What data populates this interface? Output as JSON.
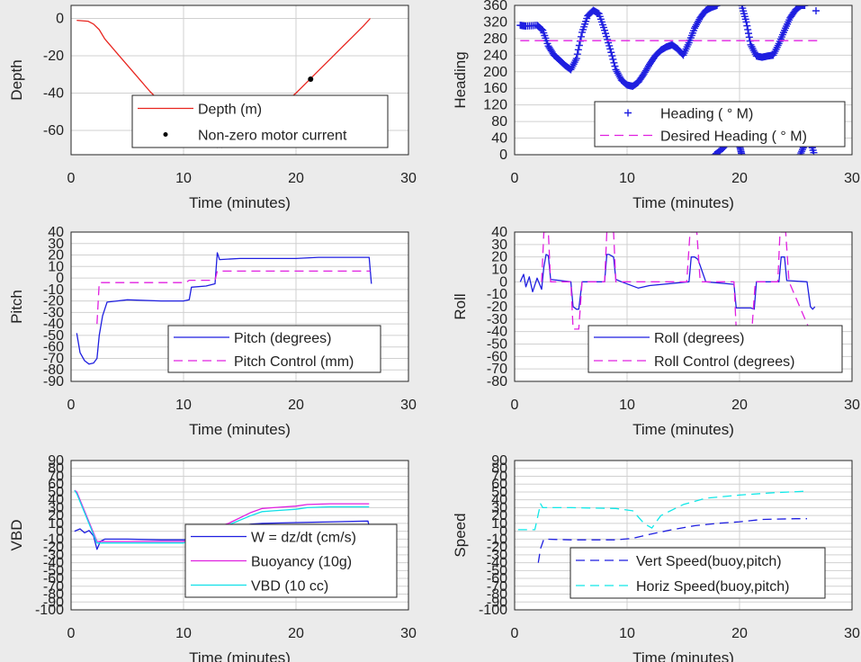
{
  "figure": {
    "background": "#ebebeb",
    "axes_background": "#ffffff",
    "grid_color": "#d0d0d0"
  },
  "chart_data": [
    {
      "id": "depth",
      "type": "line",
      "xlabel": "Time (minutes)",
      "ylabel": "Depth",
      "xlim": [
        0,
        30
      ],
      "ylim": [
        -73,
        7
      ],
      "xticks": [
        0,
        10,
        20,
        30
      ],
      "yticks": [
        0,
        -20,
        -40,
        -60
      ],
      "grid": true,
      "legend_position": "lower-center",
      "series": [
        {
          "name": "Depth (m)",
          "color": "#e8251f",
          "style": "solid",
          "x": [
            0.5,
            1.5,
            2.0,
            2.5,
            3,
            4,
            5,
            6,
            7,
            8,
            9,
            10,
            11,
            12,
            13,
            14,
            15,
            16,
            17,
            18,
            19,
            20,
            21,
            22,
            23,
            24,
            25,
            26,
            26.6
          ],
          "y": [
            -1,
            -1.5,
            -3,
            -6,
            -11,
            -18,
            -25,
            -32,
            -39,
            -45,
            -51,
            -57,
            -62,
            -66,
            -68,
            -67,
            -64,
            -60,
            -55,
            -50,
            -45,
            -40,
            -34,
            -28,
            -22,
            -16,
            -10,
            -4,
            0
          ]
        },
        {
          "name": "Non-zero motor current",
          "color": "#000000",
          "style": "markers",
          "x": [
            10.2,
            10.6,
            11.0,
            11.4,
            11.8,
            12.2,
            12.6,
            13.0,
            13.4,
            13.8,
            14.2,
            14.6,
            15.0,
            15.4,
            15.8,
            16.2,
            16.6,
            17.0,
            19.2,
            19.4,
            19.6,
            19.8,
            21.3
          ],
          "y": [
            -61,
            -62,
            -63,
            -64.5,
            -66,
            -67,
            -67.5,
            -68,
            -68,
            -67.5,
            -67,
            -66,
            -65,
            -63.5,
            -62,
            -60.5,
            -58.5,
            -57,
            -46.5,
            -45.2,
            -43.8,
            -42.5,
            -32.5
          ]
        }
      ]
    },
    {
      "id": "heading",
      "type": "line",
      "xlabel": "Time (minutes)",
      "ylabel": "Heading",
      "xlim": [
        0,
        30
      ],
      "ylim": [
        0,
        360
      ],
      "xticks": [
        0,
        10,
        20,
        30
      ],
      "yticks": [
        0,
        40,
        80,
        120,
        160,
        200,
        240,
        280,
        320,
        360
      ],
      "grid": true,
      "legend_position": "lower-right",
      "series": [
        {
          "name": "Heading (   ° M)",
          "color": "#1f1fe0",
          "style": "markers",
          "segments": [
            {
              "x": [
                0.5,
                1,
                2,
                2.5,
                3,
                3.5,
                4,
                4.5,
                5,
                5.5,
                6,
                6.5,
                7,
                7.5,
                8,
                8.5,
                9,
                9.5,
                10,
                10.5,
                11,
                11.5,
                12,
                12.5,
                13,
                13.5,
                14,
                14.5,
                15,
                15.5,
                16,
                16.5,
                17,
                17.5,
                18
              ],
              "y": [
                312,
                310,
                312,
                300,
                262,
                240,
                228,
                215,
                205,
                232,
                295,
                335,
                348,
                340,
                300,
                255,
                205,
                180,
                168,
                165,
                175,
                195,
                218,
                238,
                252,
                260,
                265,
                255,
                240,
                270,
                305,
                330,
                348,
                355,
                360
              ]
            },
            {
              "x": [
                17.8,
                18.5,
                19,
                19.5,
                20,
                20.2
              ],
              "y": [
                0,
                15,
                30,
                38,
                22,
                0
              ]
            },
            {
              "x": [
                20.2,
                20.6,
                21,
                21.5,
                22,
                22.5,
                23,
                23.5,
                24,
                24.5,
                25,
                25.5,
                25.8
              ],
              "y": [
                360,
                320,
                265,
                238,
                235,
                238,
                240,
                268,
                300,
                330,
                350,
                360,
                360
              ]
            },
            {
              "x": [
                25.4,
                25.8,
                26.2,
                26.6
              ],
              "y": [
                0,
                25,
                40,
                5
              ]
            },
            {
              "x": [
                26.8
              ],
              "y": [
                347
              ]
            }
          ]
        },
        {
          "name": "Desired Heading (     ° M)",
          "color": "#e020e0",
          "style": "dashed",
          "x": [
            0.5,
            27
          ],
          "y": [
            275,
            275
          ]
        }
      ]
    },
    {
      "id": "pitch",
      "type": "line",
      "xlabel": "Time (minutes)",
      "ylabel": "Pitch",
      "xlim": [
        0,
        30
      ],
      "ylim": [
        -90,
        40
      ],
      "xticks": [
        0,
        10,
        20,
        30
      ],
      "yticks": [
        40,
        30,
        20,
        10,
        0,
        -10,
        -20,
        -30,
        -40,
        -50,
        -60,
        -70,
        -80,
        -90
      ],
      "grid": true,
      "legend_position": "lower-right",
      "series": [
        {
          "name": "Pitch (degrees)",
          "color": "#1f1fe0",
          "style": "solid",
          "x": [
            0.5,
            0.8,
            1.2,
            1.6,
            2.0,
            2.3,
            2.5,
            2.8,
            3.2,
            5,
            8,
            10,
            10.5,
            10.7,
            12,
            12.8,
            13.0,
            13.2,
            15,
            20,
            22,
            26.5,
            26.7
          ],
          "y": [
            -48,
            -65,
            -72,
            -75,
            -74,
            -70,
            -50,
            -33,
            -21,
            -19,
            -20,
            -20,
            -19,
            -8,
            -7,
            -5,
            22,
            16,
            17,
            17,
            18,
            18,
            -5
          ]
        },
        {
          "name": "Pitch Control (mm)",
          "color": "#e020e0",
          "style": "dashed",
          "x": [
            2.3,
            2.5,
            10.2,
            10.5,
            12.8,
            13.0,
            26.6
          ],
          "y": [
            -40,
            -4,
            -4,
            -2,
            -2,
            6,
            6
          ]
        }
      ]
    },
    {
      "id": "roll",
      "type": "line",
      "xlabel": "Time (minutes)",
      "ylabel": "Roll",
      "xlim": [
        0,
        30
      ],
      "ylim": [
        -80,
        40
      ],
      "xticks": [
        0,
        10,
        20,
        30
      ],
      "yticks": [
        40,
        30,
        20,
        10,
        0,
        -10,
        -20,
        -30,
        -40,
        -50,
        -60,
        -70,
        -80
      ],
      "grid": true,
      "legend_position": "lower-right",
      "series": [
        {
          "name": "Roll (degrees)",
          "color": "#1f1fe0",
          "style": "solid",
          "x": [
            0.5,
            0.8,
            1.0,
            1.3,
            1.6,
            2.0,
            2.4,
            2.6,
            2.8,
            3.0,
            3.2,
            5,
            5.2,
            5.5,
            5.7,
            6,
            8,
            8.2,
            8.4,
            8.8,
            9,
            9.5,
            11,
            12,
            15.5,
            15.7,
            16,
            16.3,
            17,
            19.5,
            19.7,
            21,
            21.3,
            21.5,
            23.5,
            23.7,
            24,
            24.2,
            26,
            26.3,
            26.5,
            26.7
          ],
          "y": [
            0,
            6,
            -4,
            4,
            -8,
            3,
            -6,
            12,
            22,
            21,
            2,
            0,
            -20,
            -22,
            -22,
            0,
            0,
            22,
            22,
            20,
            2,
            0,
            -5,
            -3,
            0,
            20,
            20,
            18,
            0,
            -2,
            -21,
            -21,
            -22,
            0,
            0,
            20,
            20,
            1,
            0,
            -20,
            -22,
            -20
          ]
        },
        {
          "name": "Roll Control (degrees)",
          "color": "#e020e0",
          "style": "dashed",
          "x": [
            2.4,
            2.6,
            3.0,
            3.2,
            5,
            5.2,
            5.7,
            6,
            8,
            8.2,
            8.8,
            9,
            15.3,
            15.6,
            16.2,
            16.5,
            19.5,
            19.7,
            21.1,
            21.4,
            23.4,
            23.6,
            24.1,
            24.4,
            26.3,
            26.7
          ],
          "y": [
            0,
            40,
            40,
            0,
            0,
            -38,
            -38,
            0,
            0,
            40,
            40,
            0,
            0,
            40,
            40,
            0,
            0,
            -38,
            -38,
            0,
            0,
            40,
            40,
            0,
            -40,
            -50
          ]
        }
      ]
    },
    {
      "id": "vbd",
      "type": "line",
      "xlabel": "Time (minutes)",
      "ylabel": "VBD",
      "xlim": [
        0,
        30
      ],
      "ylim": [
        -100,
        90
      ],
      "xticks": [
        0,
        10,
        20,
        30
      ],
      "yticks": [
        90,
        80,
        70,
        60,
        50,
        40,
        30,
        20,
        10,
        0,
        -10,
        -20,
        -30,
        -40,
        -50,
        -60,
        -70,
        -80,
        -90,
        -100
      ],
      "grid": true,
      "legend_position": "lower-right",
      "series": [
        {
          "name": "W = dz/dt (cm/s)",
          "color": "#1f1fe0",
          "style": "solid",
          "x": [
            0.3,
            0.8,
            1.2,
            1.6,
            2.0,
            2.3,
            2.6,
            3.0,
            5,
            8,
            10,
            11,
            12,
            13,
            14,
            15,
            16,
            17,
            20,
            26.4,
            26.6
          ],
          "y": [
            0,
            3,
            -2,
            1,
            -6,
            -23,
            -13,
            -10,
            -10,
            -11,
            -11,
            -9,
            -5,
            0,
            4,
            7,
            9,
            10,
            11,
            13,
            0
          ]
        },
        {
          "name": "Buoyancy (10g)",
          "color": "#e020e0",
          "style": "solid",
          "x": [
            0.3,
            0.5,
            2.3,
            3.0,
            10,
            12,
            14,
            16,
            17,
            18,
            20,
            21,
            23,
            26.5
          ],
          "y": [
            52,
            50,
            -13,
            -13,
            -13,
            0,
            10,
            24,
            29,
            30,
            32,
            34,
            35,
            35
          ]
        },
        {
          "name": "VBD (10 cc)",
          "color": "#10e0e8",
          "style": "solid",
          "x": [
            0.3,
            0.5,
            2.3,
            3.0,
            10,
            12,
            14,
            16,
            17,
            18,
            20,
            21,
            23,
            26.5
          ],
          "y": [
            52,
            48,
            -15,
            -15,
            -15,
            -2,
            8,
            20,
            25,
            26,
            28,
            30,
            31,
            31
          ]
        }
      ]
    },
    {
      "id": "speed",
      "type": "line",
      "xlabel": "Time (minutes)",
      "ylabel": "Speed",
      "xlim": [
        0,
        30
      ],
      "ylim": [
        -100,
        90
      ],
      "xticks": [
        0,
        10,
        20,
        30
      ],
      "yticks": [
        90,
        80,
        70,
        60,
        50,
        40,
        30,
        20,
        10,
        0,
        -10,
        -20,
        -30,
        -40,
        -50,
        -60,
        -70,
        -80,
        -90,
        -100
      ],
      "grid": true,
      "legend_position": "lower-right",
      "series": [
        {
          "name": "Vert Speed(buoy,pitch)",
          "color": "#1f1fe0",
          "style": "dashed",
          "x": [
            2.1,
            2.3,
            2.6,
            5,
            9,
            10.5,
            12,
            14,
            16,
            18,
            20,
            22,
            25,
            26
          ],
          "y": [
            -40,
            -22,
            -10,
            -11,
            -11,
            -9,
            -4,
            2,
            7,
            10,
            12,
            15,
            16,
            16
          ]
        },
        {
          "name": "Horiz Speed(buoy,pitch)",
          "color": "#10e8e8",
          "style": "dashed",
          "x": [
            0.3,
            1.8,
            2.3,
            2.5,
            5,
            9,
            10.5,
            11.5,
            12.2,
            13,
            15,
            17,
            20,
            23,
            26
          ],
          "y": [
            2,
            2,
            35,
            30,
            30,
            29,
            26,
            10,
            4,
            20,
            34,
            42,
            46,
            49,
            51
          ]
        }
      ]
    }
  ]
}
